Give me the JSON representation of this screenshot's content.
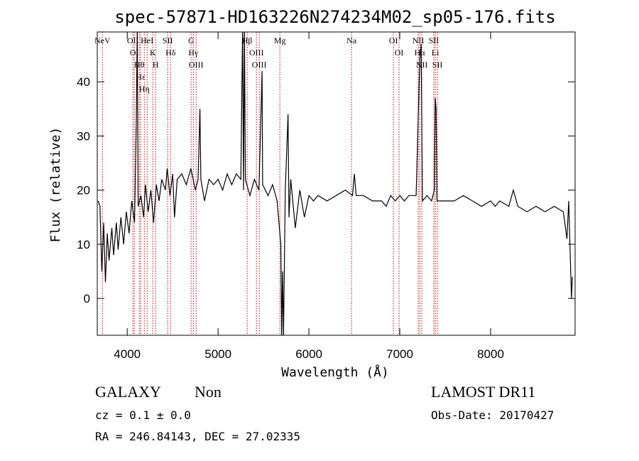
{
  "chart_data": {
    "type": "line",
    "title": "spec-57871-HD163226N274234M02_sp05-176.fits",
    "x_label": "Wavelength (Å)",
    "y_label": "Flux (relative)",
    "xlim": [
      3670,
      8930
    ],
    "ylim": [
      -6.8,
      49.2
    ],
    "xticks": [
      4000,
      5000,
      6000,
      7000,
      8000
    ],
    "yticks": [
      0,
      10,
      20,
      30,
      40
    ],
    "color": "#000000",
    "line_color": "#c00000",
    "x": [
      3680,
      3700,
      3720,
      3740,
      3760,
      3780,
      3800,
      3830,
      3850,
      3880,
      3900,
      3930,
      3960,
      3990,
      4020,
      4050,
      4080,
      4100,
      4110,
      4120,
      4150,
      4180,
      4200,
      4230,
      4260,
      4290,
      4320,
      4350,
      4380,
      4420,
      4440,
      4470,
      4500,
      4520,
      4550,
      4600,
      4650,
      4700,
      4750,
      4780,
      4800,
      4810,
      4850,
      4900,
      4950,
      5000,
      5050,
      5100,
      5150,
      5200,
      5250,
      5270,
      5280,
      5290,
      5300,
      5350,
      5400,
      5450,
      5484,
      5490,
      5550,
      5600,
      5650,
      5690,
      5700,
      5710,
      5720,
      5740,
      5770,
      5780,
      5800,
      5850,
      5900,
      5950,
      6000,
      6050,
      6100,
      6200,
      6300,
      6400,
      6480,
      6500,
      6520,
      6600,
      6700,
      6800,
      6850,
      6900,
      6950,
      7000,
      7050,
      7100,
      7150,
      7180,
      7220,
      7235,
      7250,
      7300,
      7350,
      7380,
      7390,
      7400,
      7410,
      7500,
      7600,
      7700,
      7800,
      7900,
      8000,
      8050,
      8100,
      8200,
      8250,
      8300,
      8400,
      8500,
      8600,
      8700,
      8800,
      8840,
      8860,
      8890,
      8900
    ],
    "values": [
      18,
      17,
      5,
      14,
      3,
      12,
      7,
      13,
      8,
      14,
      9,
      15,
      10,
      16,
      12,
      18,
      14,
      33,
      50,
      17,
      19,
      15,
      21,
      16,
      20,
      14,
      21,
      18,
      22,
      20,
      24,
      19,
      23,
      15,
      22,
      23,
      21,
      24,
      20,
      22,
      35,
      22,
      18,
      22,
      21,
      22,
      20,
      23,
      21,
      23,
      22,
      50,
      20,
      50,
      22,
      19,
      22,
      20,
      42,
      21,
      19,
      21,
      18,
      10,
      -7,
      5,
      -7,
      20,
      34,
      15,
      22,
      13,
      20,
      15,
      19,
      18,
      19,
      18,
      19,
      20,
      19,
      23,
      19,
      19,
      18,
      18,
      17,
      19,
      18,
      19,
      18,
      19,
      19,
      19,
      44,
      47,
      18,
      19,
      18,
      20,
      37,
      35,
      18,
      18,
      18,
      19,
      18,
      17,
      18,
      17,
      18,
      17,
      20,
      17,
      16,
      17,
      16,
      17,
      16,
      11,
      18,
      0,
      4
    ],
    "lines": [
      {
        "wavelength": 3727,
        "label": "NeV"
      },
      {
        "wavelength": 4062,
        "label": "OII"
      },
      {
        "wavelength": 4078,
        "label": "OI"
      },
      {
        "wavelength": 4133,
        "label": "Hθ"
      },
      {
        "wavelength": 4148,
        "label": "Hε"
      },
      {
        "wavelength": 4188,
        "label": "Hη"
      },
      {
        "wavelength": 4219,
        "label": "HeI"
      },
      {
        "wavelength": 4281,
        "label": "K"
      },
      {
        "wavelength": 4313,
        "label": "H"
      },
      {
        "wavelength": 4445,
        "label": "SII"
      },
      {
        "wavelength": 4477,
        "label": "Hδ"
      },
      {
        "wavelength": 4703,
        "label": "G"
      },
      {
        "wavelength": 4727,
        "label": "Hγ"
      },
      {
        "wavelength": 4758,
        "label": "OIII"
      },
      {
        "wavelength": 5320,
        "label": "Hβ"
      },
      {
        "wavelength": 5422,
        "label": "OIII"
      },
      {
        "wavelength": 5453,
        "label": "OIII"
      },
      {
        "wavelength": 5680,
        "label": "Mg"
      },
      {
        "wavelength": 6469,
        "label": "Na"
      },
      {
        "wavelength": 6930,
        "label": "OI"
      },
      {
        "wavelength": 6992,
        "label": "OI"
      },
      {
        "wavelength": 7203,
        "label": "NII"
      },
      {
        "wavelength": 7219,
        "label": "Hα"
      },
      {
        "wavelength": 7242,
        "label": "NII"
      },
      {
        "wavelength": 7375,
        "label": "SII"
      },
      {
        "wavelength": 7391,
        "label": "Li"
      },
      {
        "wavelength": 7414,
        "label": "SII"
      }
    ]
  },
  "footer": {
    "class": "GALAXY",
    "subclass": "Non",
    "survey": "LAMOST DR11",
    "cz": "cz = 0.1 ± 0.0",
    "obs_date": "Obs-Date: 20170427",
    "coords": "RA = 246.84143, DEC =  27.02335"
  }
}
